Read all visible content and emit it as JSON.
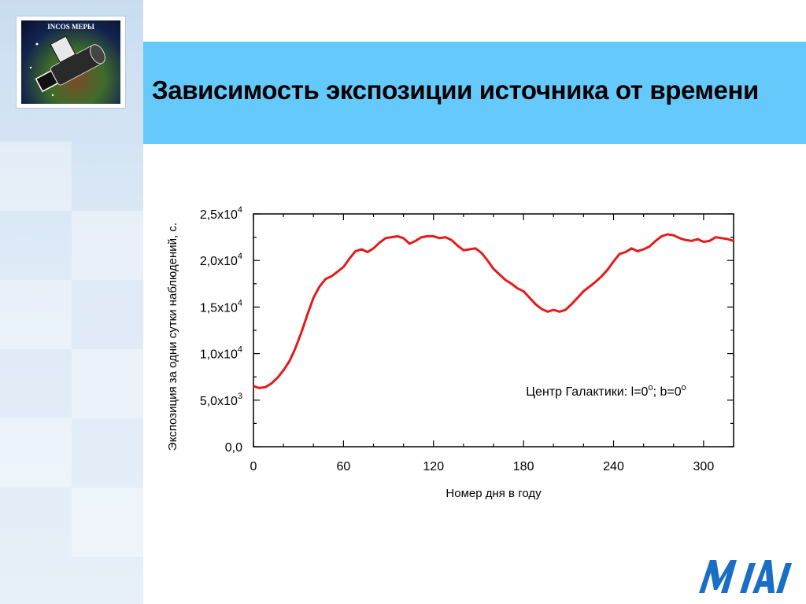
{
  "slide": {
    "title": "Зависимость экспозиции источника от времени",
    "logo_text": "INCOS МЕРЫ",
    "footer_logo_name": "mifi-logo"
  },
  "colors": {
    "header_band": "#66c9fb",
    "series_line": "#e31b1b",
    "axis": "#000000"
  },
  "chart_data": {
    "type": "line",
    "title": "",
    "xlabel": "Номер дня в году",
    "ylabel": "Экспозиция за одни сутки наблюдений, с.",
    "xlim": [
      0,
      320
    ],
    "ylim": [
      0,
      25000
    ],
    "x_ticks": [
      0,
      60,
      120,
      180,
      240,
      300
    ],
    "x_tick_labels": [
      "0",
      "60",
      "120",
      "180",
      "240",
      "300"
    ],
    "y_ticks": [
      0,
      5000,
      10000,
      15000,
      20000,
      25000
    ],
    "y_tick_labels": [
      {
        "mantissa": "0,0",
        "exponent": ""
      },
      {
        "mantissa": "5,0x10",
        "exponent": "3"
      },
      {
        "mantissa": "1,0x10",
        "exponent": "4"
      },
      {
        "mantissa": "1,5x10",
        "exponent": "4"
      },
      {
        "mantissa": "2,0x10",
        "exponent": "4"
      },
      {
        "mantissa": "2,5x10",
        "exponent": "4"
      }
    ],
    "annotation": {
      "text_parts": [
        "Центр Галактики: l=0",
        "o",
        "; b=0",
        "o"
      ],
      "x": 235,
      "y": 5500
    },
    "grid": false,
    "series": [
      {
        "color": "#e31b1b",
        "x": [
          0,
          4,
          8,
          12,
          16,
          20,
          24,
          28,
          32,
          36,
          40,
          44,
          48,
          52,
          56,
          60,
          64,
          68,
          72,
          76,
          80,
          84,
          88,
          92,
          96,
          100,
          104,
          108,
          112,
          116,
          120,
          124,
          128,
          132,
          136,
          140,
          144,
          148,
          152,
          156,
          160,
          164,
          168,
          172,
          176,
          180,
          184,
          188,
          192,
          196,
          200,
          204,
          208,
          212,
          216,
          220,
          224,
          228,
          232,
          236,
          240,
          244,
          248,
          252,
          256,
          260,
          264,
          268,
          272,
          276,
          280,
          284,
          288,
          292,
          296,
          300,
          304,
          308,
          312,
          316,
          320
        ],
        "y": [
          6500,
          6300,
          6400,
          6800,
          7400,
          8200,
          9200,
          10600,
          12300,
          14200,
          16000,
          17200,
          18000,
          18300,
          18800,
          19300,
          20200,
          21000,
          21200,
          20900,
          21300,
          21900,
          22400,
          22500,
          22600,
          22400,
          21800,
          22100,
          22500,
          22600,
          22600,
          22400,
          22500,
          22200,
          21600,
          21100,
          21200,
          21300,
          20800,
          20000,
          19100,
          18500,
          17900,
          17500,
          17000,
          16700,
          16000,
          15300,
          14800,
          14500,
          14700,
          14500,
          14700,
          15300,
          16000,
          16700,
          17200,
          17700,
          18300,
          19000,
          19900,
          20700,
          20900,
          21300,
          21000,
          21200,
          21500,
          22100,
          22600,
          22800,
          22700,
          22400,
          22200,
          22100,
          22300,
          22000,
          22100,
          22500,
          22400,
          22300,
          22100
        ]
      }
    ]
  }
}
